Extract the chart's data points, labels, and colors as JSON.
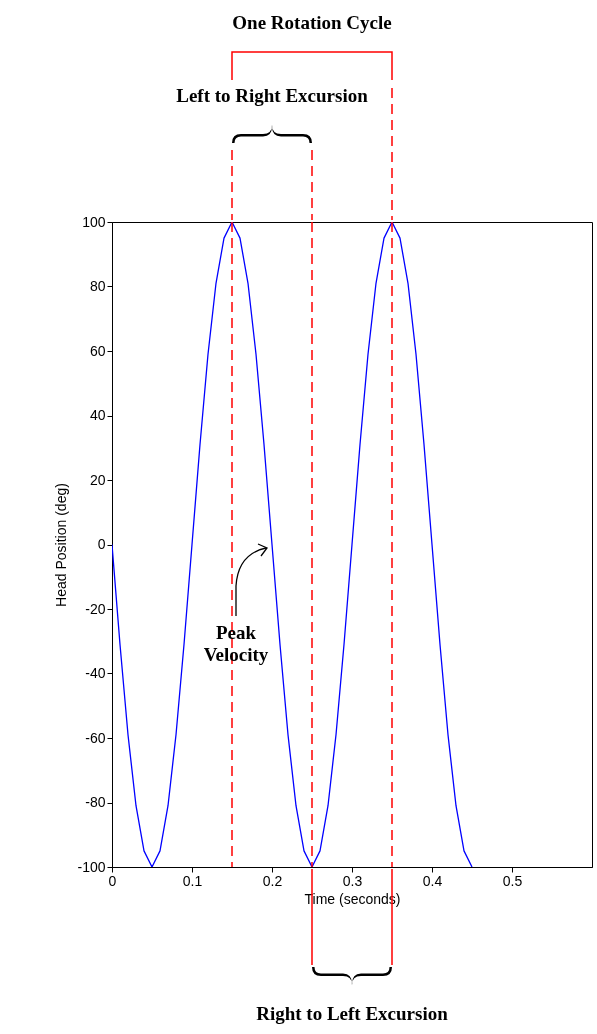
{
  "chart_data": {
    "type": "line",
    "xlabel": "Time (seconds)",
    "ylabel": "Head Position (deg)",
    "x": [
      0,
      0.01,
      0.02,
      0.03,
      0.04,
      0.05,
      0.06,
      0.07,
      0.08,
      0.09,
      0.1,
      0.11,
      0.12,
      0.13,
      0.14,
      0.15,
      0.16,
      0.17,
      0.18,
      0.19,
      0.2,
      0.21,
      0.22,
      0.23,
      0.24,
      0.25,
      0.26,
      0.27,
      0.28,
      0.29,
      0.3,
      0.31,
      0.32,
      0.33,
      0.34,
      0.35,
      0.36,
      0.37,
      0.38,
      0.39,
      0.4,
      0.41,
      0.42,
      0.43,
      0.44,
      0.45
    ],
    "series": [
      {
        "color": "#0000ff",
        "values": [
          0,
          -31,
          -59,
          -81,
          -95,
          -100,
          -95,
          -81,
          -59,
          -31,
          0,
          31,
          59,
          81,
          95,
          100,
          95,
          81,
          59,
          31,
          0,
          -31,
          -59,
          -81,
          -95,
          -100,
          -95,
          -81,
          -59,
          -31,
          0,
          31,
          59,
          81,
          95,
          100,
          95,
          81,
          59,
          31,
          0,
          -31,
          -59,
          -81,
          -95,
          -100
        ]
      }
    ],
    "xlim": [
      0,
      0.6
    ],
    "xticks": [
      0,
      0.1,
      0.2,
      0.3,
      0.4,
      0.5
    ],
    "ylim": [
      -100,
      100
    ],
    "yticks": [
      -100,
      -80,
      -60,
      -40,
      -20,
      0,
      20,
      40,
      60,
      80,
      100
    ],
    "marker": "none",
    "line_style": "solid",
    "ref_lines": [
      {
        "axis": "x",
        "value": 0.15,
        "color": "#ff0000",
        "line_style": "dashed"
      },
      {
        "axis": "x",
        "value": 0.25,
        "color": "#ff0000",
        "line_style": "dashed"
      },
      {
        "axis": "x",
        "value": 0.35,
        "color": "#ff0000",
        "line_style": "dashed"
      }
    ],
    "annotations": [
      "One Rotation Cycle",
      "Left to Right Excursion",
      "Peak Velocity",
      "Right to Left Excursion"
    ]
  }
}
